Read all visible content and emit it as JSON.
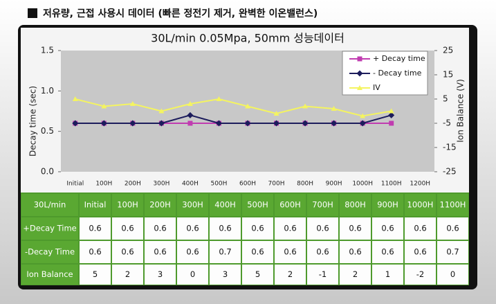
{
  "header": {
    "title": "저유량, 근접 사용시 데이터 (빠른 정전기 제거, 완벽한 이온밸런스)"
  },
  "chart_data": {
    "type": "line",
    "title": "30L/min  0.05Mpa, 50mm 성능데이터",
    "y_label": "Decay time (sec)",
    "y2_label": "Ion Balance (V)",
    "categories": [
      "Initial",
      "100H",
      "200H",
      "300H",
      "400H",
      "500H",
      "600H",
      "700H",
      "800H",
      "900H",
      "1000H",
      "1100H",
      "1200H"
    ],
    "series": [
      {
        "name": "+ Decay time",
        "color": "#c03cb0",
        "marker": "square",
        "values": [
          0.6,
          0.6,
          0.6,
          0.6,
          0.6,
          0.6,
          0.6,
          0.6,
          0.6,
          0.6,
          0.6,
          0.6,
          null
        ]
      },
      {
        "name": "- Decay time",
        "color": "#1c1c5c",
        "marker": "diamond",
        "values": [
          0.6,
          0.6,
          0.6,
          0.6,
          0.7,
          0.6,
          0.6,
          0.6,
          0.6,
          0.6,
          0.6,
          0.7,
          null
        ]
      },
      {
        "name": "IV",
        "color": "#f4f460",
        "marker": "triangle",
        "axis": "y2",
        "values": [
          5,
          2,
          3,
          0,
          3,
          5,
          2,
          -1,
          2,
          1,
          -2,
          0,
          null
        ]
      }
    ],
    "ylim": [
      0,
      1.5
    ],
    "yticks": [
      {
        "value": 0,
        "label": "0.0"
      },
      {
        "value": 0.5,
        "label": "0.5"
      },
      {
        "value": 1,
        "label": "1.0"
      },
      {
        "value": 1.5,
        "label": "1.5"
      }
    ],
    "y2lim": [
      -25,
      25
    ],
    "y2ticks": [
      -25,
      -15,
      -5,
      5,
      15,
      25
    ],
    "legend": "top-right"
  },
  "table": {
    "corner": "30L/min",
    "row_labels": [
      "+Decay Time",
      "-Decay Time",
      "Ion Balance"
    ]
  }
}
